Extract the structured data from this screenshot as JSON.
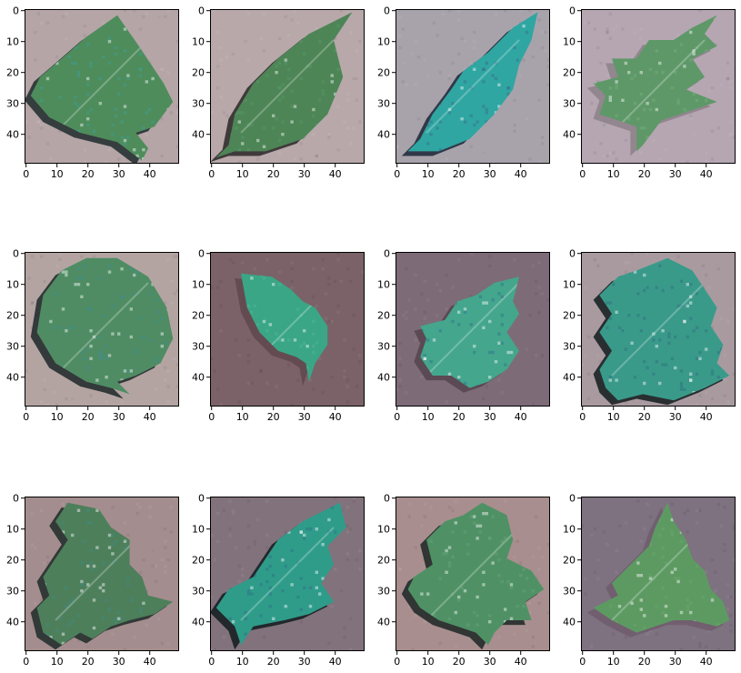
{
  "figure": {
    "rows": 3,
    "cols": 4,
    "image_size": 50,
    "x_ticks": [
      0,
      10,
      20,
      30,
      40
    ],
    "y_ticks": [
      0,
      10,
      20,
      30,
      40
    ],
    "x_tick_labels": [
      "0",
      "10",
      "20",
      "30",
      "40"
    ],
    "y_tick_labels": [
      "0",
      "10",
      "20",
      "30",
      "40"
    ],
    "panels": [
      {
        "background": "#b5a5a6",
        "leaf": "#4e8c5c",
        "shadow": "#1e2a2b",
        "spots": "#3e9f99",
        "shape": "broad-leaf pointing down-right"
      },
      {
        "background": "#b8a8aa",
        "leaf": "#4d8556",
        "shadow": "#2a2728",
        "spots": "#5a9a6b",
        "shape": "lance leaf pointing up-right"
      },
      {
        "background": "#a8a3ab",
        "leaf": "#2fa6a2",
        "shadow": "#1c2636",
        "spots": "#3b6b88",
        "shape": "diagonal diseased leaf"
      },
      {
        "background": "#b5a6b2",
        "leaf": "#5e9868",
        "shadow": "#8c8088",
        "spots": "#7ab07e",
        "shape": "serrated leaf"
      },
      {
        "background": "#b3a4a2",
        "leaf": "#4f8c63",
        "shadow": "#1d2728",
        "spots": "#3d8f9a",
        "shape": "round leaf with shadow"
      },
      {
        "background": "#7a6268",
        "leaf": "#3aa686",
        "shadow": "#60484e",
        "spots": "#52b89a",
        "shape": "small leaf with stem"
      },
      {
        "background": "#7d6b78",
        "leaf": "#44a68c",
        "shadow": "#55434c",
        "spots": "#2f6f8e",
        "shape": "spotted maple-like leaf"
      },
      {
        "background": "#a99aa0",
        "leaf": "#3a9a8a",
        "shadow": "#131c1d",
        "spots": "#2d6e7a",
        "shape": "ruffled diseased leaf"
      },
      {
        "background": "#a48d8e",
        "leaf": "#4d7f5b",
        "shadow": "#1e2a28",
        "spots": "#3f8b89",
        "shape": "lobed leaf"
      },
      {
        "background": "#82727c",
        "leaf": "#2f9c8a",
        "shadow": "#121b1e",
        "spots": "#2e6e86",
        "shape": "irregular dark leaf"
      },
      {
        "background": "#a88e8e",
        "leaf": "#4f9165",
        "shadow": "#1c2624",
        "spots": "#6aa57c",
        "shape": "large lobed leaf"
      },
      {
        "background": "#7e7180",
        "leaf": "#5d9a62",
        "shadow": "#6e5c6c",
        "spots": "#6aa86f",
        "shape": "triangular serrated leaf"
      }
    ]
  }
}
